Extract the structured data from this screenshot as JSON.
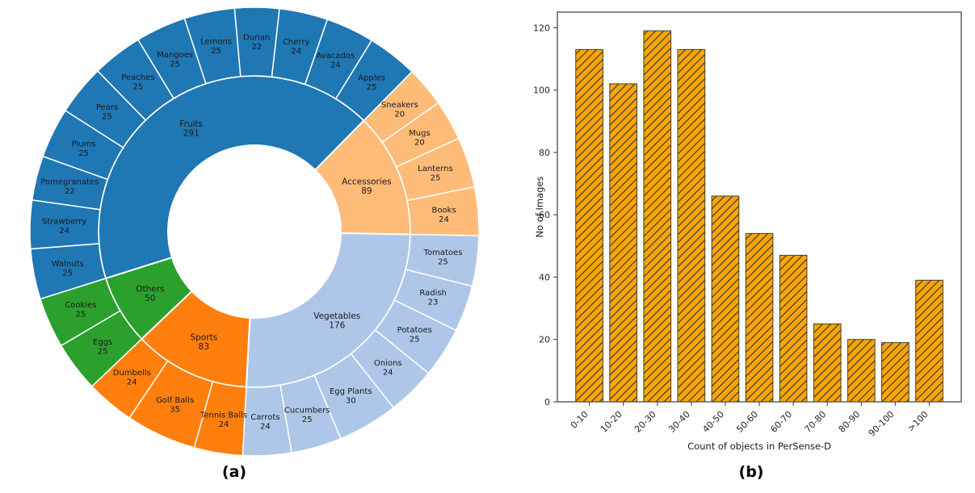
{
  "figure": {
    "captions": {
      "a": "(a)",
      "b": "(b)"
    }
  },
  "chart_data": [
    {
      "type": "pie",
      "subtype": "sunburst",
      "panel": "a",
      "total": 689,
      "start_angle_deg": 252.5,
      "direction": "clockwise",
      "rings": [
        "category",
        "subcategory"
      ],
      "segments": [
        {
          "name": "Fruits",
          "value": 291,
          "color": "#1f77b4",
          "children": [
            {
              "name": "Walnuts",
              "value": 25
            },
            {
              "name": "Strawberry",
              "value": 24
            },
            {
              "name": "Pomegranates",
              "value": 22
            },
            {
              "name": "Plums",
              "value": 25
            },
            {
              "name": "Pears",
              "value": 25
            },
            {
              "name": "Peaches",
              "value": 25
            },
            {
              "name": "Mangoes",
              "value": 25
            },
            {
              "name": "Lemons",
              "value": 25
            },
            {
              "name": "Durian",
              "value": 22
            },
            {
              "name": "Cherry",
              "value": 24
            },
            {
              "name": "Avacados",
              "value": 24
            },
            {
              "name": "Apples",
              "value": 25
            }
          ]
        },
        {
          "name": "Accessories",
          "value": 89,
          "color": "#ffbb78",
          "children": [
            {
              "name": "Sneakers",
              "value": 20
            },
            {
              "name": "Mugs",
              "value": 20
            },
            {
              "name": "Lanterns",
              "value": 25
            },
            {
              "name": "Books",
              "value": 24
            }
          ]
        },
        {
          "name": "Vegetables",
          "value": 176,
          "color": "#aec7e8",
          "children": [
            {
              "name": "Tomatoes",
              "value": 25
            },
            {
              "name": "Radish",
              "value": 23
            },
            {
              "name": "Potatoes",
              "value": 25
            },
            {
              "name": "Onions",
              "value": 24
            },
            {
              "name": "Egg Plants",
              "value": 30
            },
            {
              "name": "Cucumbers",
              "value": 25
            },
            {
              "name": "Carrots",
              "value": 24
            }
          ]
        },
        {
          "name": "Sports",
          "value": 83,
          "color": "#ff7f0e",
          "children": [
            {
              "name": "Tennis Balls",
              "value": 24
            },
            {
              "name": "Golf Balls",
              "value": 35
            },
            {
              "name": "Dumbells",
              "value": 24
            }
          ]
        },
        {
          "name": "Others",
          "value": 50,
          "color": "#2ca02c",
          "children": [
            {
              "name": "Eggs",
              "value": 25
            },
            {
              "name": "Cookies",
              "value": 25
            }
          ]
        }
      ]
    },
    {
      "type": "bar",
      "panel": "b",
      "categories": [
        "0-10",
        "10-20",
        "20-30",
        "30-40",
        "40-50",
        "50-60",
        "60-70",
        "70-80",
        "80-90",
        "90-100",
        ">100"
      ],
      "values": [
        113,
        102,
        119,
        113,
        66,
        54,
        47,
        25,
        20,
        19,
        39
      ],
      "title": "",
      "xlabel": "Count of objects in PerSense-D",
      "ylabel": "No of Images",
      "ylim": [
        0,
        125
      ],
      "yticks": [
        0,
        20,
        40,
        60,
        80,
        100,
        120
      ],
      "bar_color": "#ffa500",
      "hatch": "//",
      "hatch_color": "#3f3f3f",
      "grid": false,
      "legend": "none"
    }
  ]
}
